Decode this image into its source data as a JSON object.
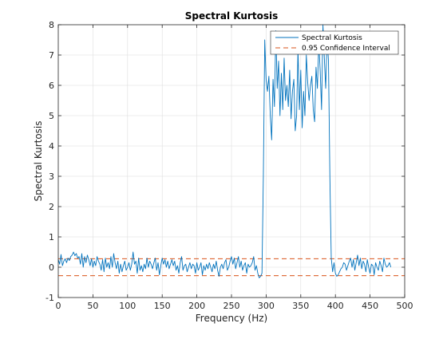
{
  "chart_data": {
    "type": "line",
    "title": "Spectral Kurtosis",
    "xlabel": "Frequency (Hz)",
    "ylabel": "Spectral Kurtosis",
    "xlim": [
      0,
      500
    ],
    "ylim": [
      -1,
      8
    ],
    "xticks": [
      "0",
      "50",
      "100",
      "150",
      "200",
      "250",
      "300",
      "350",
      "400",
      "450",
      "500"
    ],
    "yticks": [
      "-1",
      "0",
      "1",
      "2",
      "3",
      "4",
      "5",
      "6",
      "7",
      "8"
    ],
    "grid": true,
    "legend_position": "top-right",
    "x_step": 2,
    "series": [
      {
        "name": "Spectral Kurtosis",
        "color": "#0072BD",
        "style": "solid",
        "values": [
          0.25,
          0.1,
          0.42,
          0.05,
          0.2,
          0.28,
          0.15,
          0.3,
          0.22,
          0.35,
          0.4,
          0.5,
          0.38,
          0.45,
          0.3,
          0.35,
          0.1,
          0.45,
          0.0,
          0.35,
          0.15,
          0.4,
          0.25,
          0.05,
          0.28,
          0.0,
          0.2,
          0.05,
          0.35,
          0.2,
          0.1,
          -0.1,
          0.25,
          -0.15,
          0.3,
          0.0,
          0.15,
          -0.05,
          0.35,
          0.0,
          0.45,
          0.15,
          -0.05,
          0.2,
          -0.2,
          0.1,
          -0.15,
          0.05,
          0.2,
          -0.1,
          0.0,
          0.15,
          -0.1,
          0.1,
          0.5,
          0.1,
          0.2,
          -0.2,
          0.3,
          -0.1,
          0.05,
          -0.15,
          0.1,
          -0.05,
          0.3,
          0.0,
          0.2,
          0.1,
          -0.05,
          0.15,
          0.3,
          -0.1,
          0.15,
          -0.25,
          0.05,
          0.3,
          0.1,
          0.25,
          0.0,
          0.2,
          -0.05,
          0.1,
          0.25,
          0.05,
          0.2,
          -0.1,
          0.05,
          -0.2,
          0.15,
          0.35,
          -0.1,
          0.05,
          0.1,
          -0.15,
          0.0,
          0.15,
          -0.05,
          0.1,
          0.05,
          -0.2,
          0.15,
          -0.1,
          0.0,
          0.15,
          -0.25,
          0.05,
          -0.1,
          0.1,
          -0.05,
          0.15,
          0.0,
          -0.15,
          0.1,
          -0.05,
          0.2,
          -0.1,
          -0.3,
          0.0,
          0.1,
          -0.05,
          0.15,
          0.25,
          -0.1,
          0.0,
          0.2,
          0.35,
          0.1,
          0.3,
          -0.05,
          0.15,
          0.35,
          0.0,
          0.2,
          -0.1,
          0.05,
          0.15,
          -0.2,
          0.1,
          0.0,
          0.05,
          0.15,
          0.35,
          -0.1,
          0.05,
          -0.2,
          -0.35,
          -0.3,
          -0.2,
          3.0,
          7.5,
          6.2,
          5.8,
          6.3,
          5.0,
          4.2,
          6.2,
          5.3,
          7.8,
          5.9,
          6.8,
          5.0,
          6.4,
          5.2,
          6.9,
          5.5,
          6.0,
          5.3,
          6.5,
          4.9,
          5.8,
          6.2,
          4.5,
          5.0,
          7.2,
          5.2,
          6.5,
          4.6,
          5.8,
          5.0,
          7.0,
          6.1,
          5.5,
          6.0,
          6.3,
          5.2,
          4.8,
          6.6,
          5.9,
          7.4,
          6.5,
          5.2,
          8.0,
          6.9,
          5.9,
          7.6,
          6.8,
          3.0,
          0.3,
          -0.15,
          0.15,
          -0.2,
          -0.3,
          -0.25,
          -0.15,
          -0.05,
          0.0,
          0.15,
          0.1,
          -0.1,
          0.05,
          0.2,
          0.3,
          0.0,
          0.25,
          -0.1,
          0.15,
          0.4,
          0.05,
          0.3,
          -0.05,
          0.2,
          0.1,
          -0.15,
          0.25,
          0.0,
          -0.2,
          0.1,
          0.05,
          -0.25,
          0.15,
          0.0,
          -0.1,
          0.2,
          0.05,
          -0.15,
          0.3,
          0.1,
          0.0,
          0.05,
          0.15,
          0.0
        ]
      },
      {
        "name": "0.95 Confidence Interval",
        "color": "#D95319",
        "style": "dashed",
        "upper": 0.28,
        "lower": -0.28
      }
    ]
  }
}
